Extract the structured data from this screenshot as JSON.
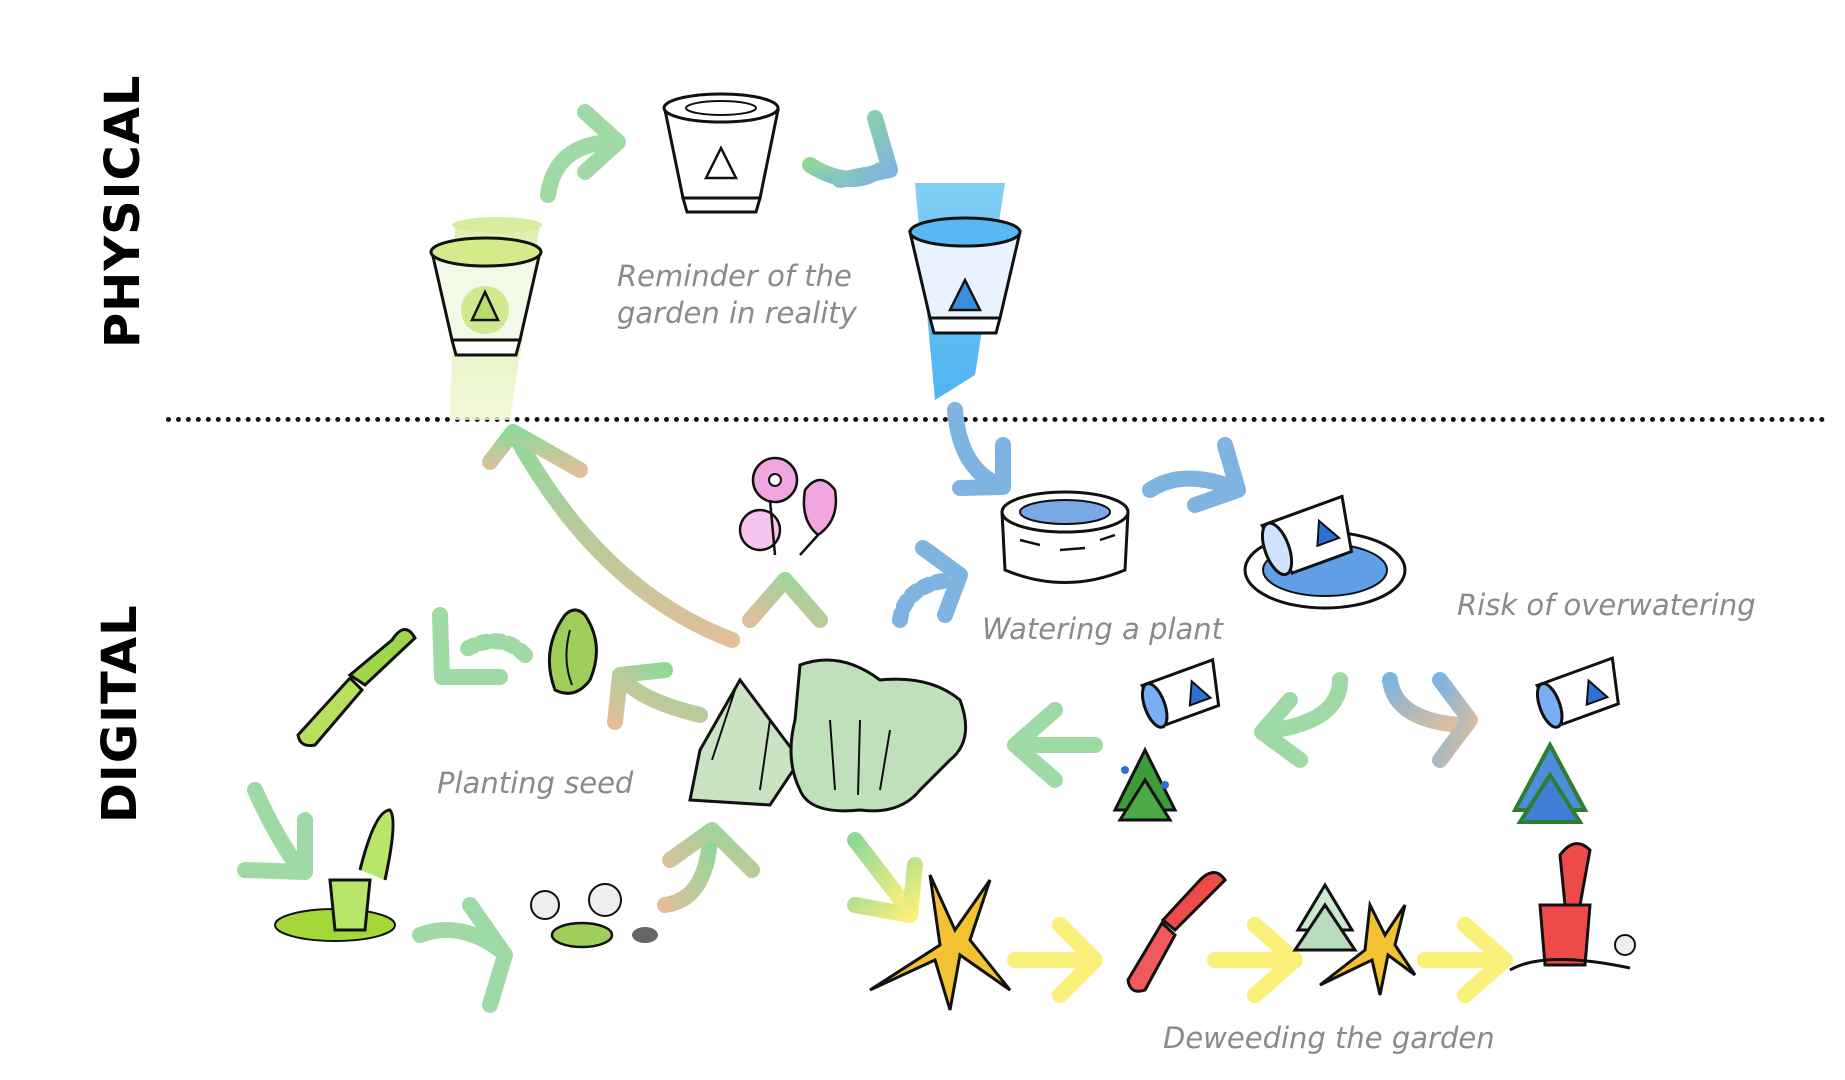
{
  "sections": {
    "physical": "PHYSICAL",
    "digital": "DIGITAL"
  },
  "captions": {
    "reminder_line1": "Reminder of the",
    "reminder_line2": "garden in reality",
    "watering": "Watering a plant",
    "overwatering": "Risk of overwatering",
    "planting": "Planting seed",
    "deweeding": "Deweeding the garden"
  },
  "icons": [
    "bucket-green-icon",
    "bucket-plain-icon",
    "bucket-blue-icon",
    "flowers-icon",
    "well-icon",
    "tipped-bucket-well-icon",
    "trowel-icon",
    "seed-icon",
    "shovel-soil-icon",
    "seed-in-soil-icon",
    "garden-plants-icon",
    "watered-tree-icon",
    "overwatered-tree-icon",
    "weed-icon",
    "red-trowel-icon",
    "tree-weed-icon",
    "red-shovel-icon"
  ],
  "colors": {
    "green": "#8fd89a",
    "blue": "#7fb3e0",
    "yellow": "#fbf07a",
    "tan": "#e0bf9a",
    "caption": "#8a8a8a"
  }
}
